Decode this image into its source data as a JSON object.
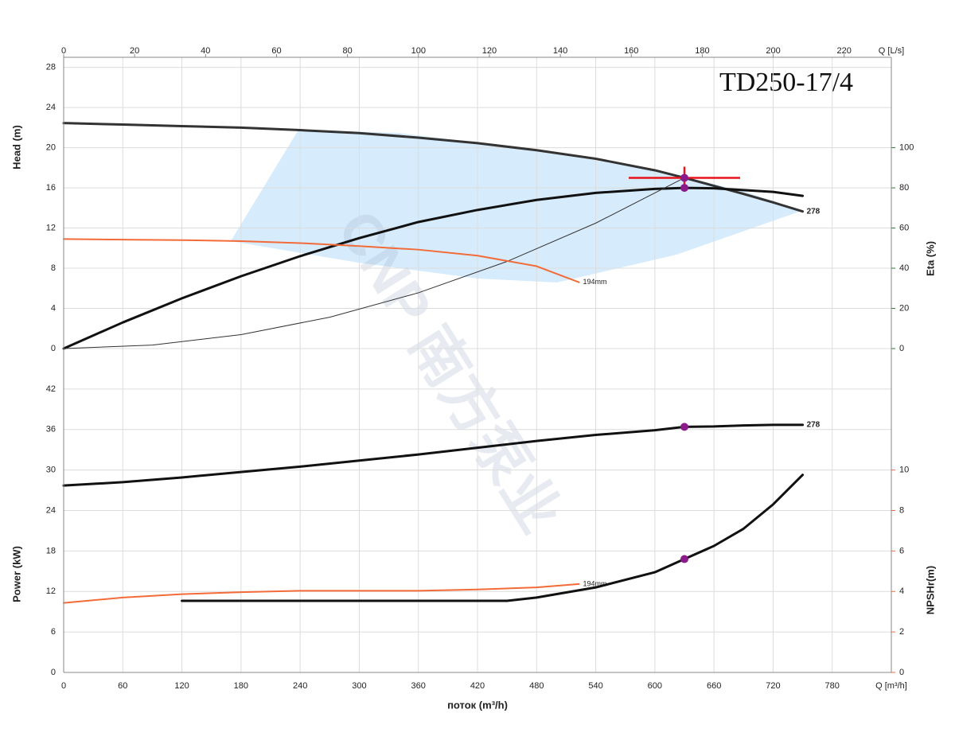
{
  "chart_data": {
    "type": "pump_curve",
    "title": "TD250-17/4",
    "watermark": "CNP 南方泵业",
    "xlabel": "поток (m³/h)",
    "x_unit_label": "Q [m³/h]",
    "x2_unit_label": "Q [L/s]",
    "xlim": [
      0,
      840
    ],
    "xticks": [
      0,
      60,
      120,
      180,
      240,
      300,
      360,
      420,
      480,
      540,
      600,
      660,
      720,
      780
    ],
    "x2lim": [
      0,
      233.3
    ],
    "x2ticks": [
      0,
      20,
      40,
      60,
      80,
      100,
      120,
      140,
      160,
      180,
      200,
      220
    ],
    "grid": true,
    "panels": [
      {
        "ylabel": "Head (m)",
        "ycolor": "#4a7bd0",
        "ylim": [
          0,
          29
        ],
        "yticks": [
          0,
          4,
          8,
          12,
          16,
          20,
          24,
          28
        ],
        "y2label": "Eta (%)",
        "y2color": "#2e7d32",
        "y2lim": [
          0,
          145
        ],
        "y2ticks": [
          0,
          20,
          40,
          60,
          80,
          100
        ],
        "series": [
          {
            "name": "278",
            "color": "#333333",
            "width": 3,
            "axis": "y",
            "x": [
              0,
              60,
              120,
              180,
              240,
              300,
              360,
              420,
              480,
              540,
              600,
              630,
              660,
              690,
              720,
              750
            ],
            "values": [
              22.45,
              22.3,
              22.15,
              22.0,
              21.75,
              21.45,
              21.0,
              20.45,
              19.75,
              18.9,
              17.75,
              17.0,
              16.2,
              15.4,
              14.55,
              13.65
            ]
          },
          {
            "color": "#111111",
            "width": 3,
            "axis": "y2",
            "x": [
              0,
              60,
              120,
              180,
              240,
              300,
              360,
              420,
              480,
              540,
              600,
              630,
              660,
              720,
              750
            ],
            "values": [
              0,
              13,
              25,
              36,
              46,
              55,
              63,
              69,
              74,
              77.5,
              79.5,
              80,
              79.8,
              78,
              76
            ]
          },
          {
            "color": "#333333",
            "width": 1,
            "axis": "y",
            "x": [
              0,
              90,
              180,
              270,
              360,
              450,
              540,
              630
            ],
            "values": [
              0,
              0.347,
              1.388,
              3.122,
              5.551,
              8.673,
              12.49,
              17
            ]
          },
          {
            "name": "194mm",
            "color": "#f26b38",
            "width": 2,
            "axis": "y",
            "x": [
              0,
              60,
              120,
              180,
              240,
              300,
              360,
              420,
              480,
              523
            ],
            "values": [
              10.9,
              10.85,
              10.8,
              10.7,
              10.5,
              10.2,
              9.85,
              9.25,
              8.2,
              6.6
            ]
          }
        ],
        "points_color": "#8b1a8b",
        "points": [
          {
            "x": 630,
            "y": 17
          },
          {
            "x": 630,
            "y": 80,
            "axis": "y2"
          }
        ],
        "duty_point": {
          "x": 630,
          "y": 17,
          "color": "#e8141b"
        }
      },
      {
        "ylabel": "Power (kW)",
        "ycolor": "#d0237a",
        "ylim": [
          0,
          48
        ],
        "yticks": [
          0,
          6,
          12,
          18,
          24,
          30,
          36,
          42
        ],
        "y2label": "NPSHr(m)",
        "y2color": "#f06a3c",
        "y2lim": [
          0,
          16
        ],
        "y2ticks": [
          0,
          2,
          4,
          6,
          8,
          10
        ],
        "series": [
          {
            "name": "278",
            "color": "#111111",
            "width": 3,
            "axis": "y",
            "x": [
              0,
              60,
              120,
              180,
              240,
              300,
              360,
              420,
              480,
              540,
              600,
              630,
              660,
              690,
              720,
              750
            ],
            "values": [
              27.7,
              28.2,
              28.9,
              29.7,
              30.5,
              31.4,
              32.3,
              33.3,
              34.3,
              35.2,
              35.9,
              36.4,
              36.45,
              36.6,
              36.7,
              36.7
            ]
          },
          {
            "name": "194mm",
            "color": "#f26b38",
            "width": 2,
            "axis": "y",
            "x": [
              0,
              60,
              120,
              180,
              240,
              300,
              360,
              420,
              480,
              523
            ],
            "values": [
              10.3,
              11.1,
              11.6,
              11.9,
              12.1,
              12.1,
              12.1,
              12.3,
              12.6,
              13.1
            ]
          },
          {
            "color": "#111111",
            "width": 3,
            "axis": "y2",
            "x": [
              120,
              180,
              240,
              300,
              360,
              420,
              450,
              480,
              540,
              600,
              630,
              660,
              690,
              720,
              750
            ],
            "values": [
              3.54,
              3.54,
              3.54,
              3.54,
              3.54,
              3.54,
              3.54,
              3.7,
              4.2,
              4.95,
              5.6,
              6.25,
              7.1,
              8.3,
              9.76
            ]
          }
        ],
        "points_color": "#8b1a8b",
        "points": [
          {
            "x": 630,
            "y": 36.4
          },
          {
            "x": 630,
            "y": 5.6,
            "axis": "y2"
          }
        ]
      }
    ]
  }
}
